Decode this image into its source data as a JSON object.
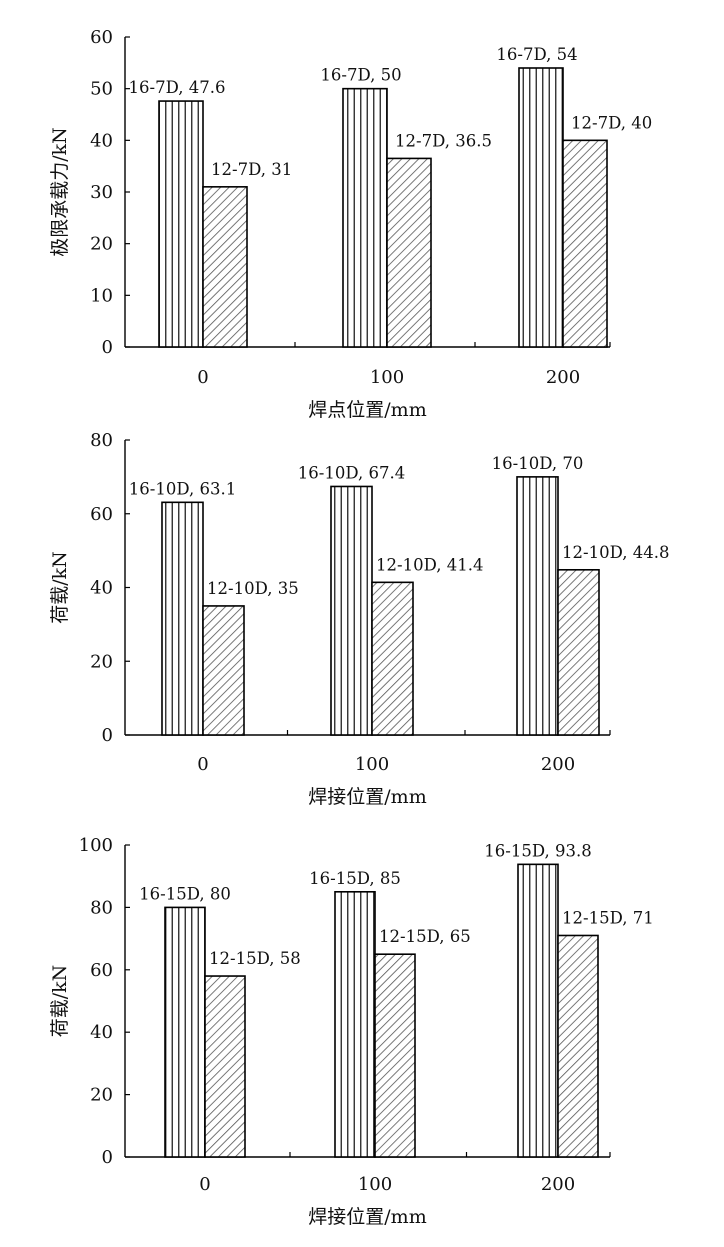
{
  "chart_data": [
    {
      "type": "bar",
      "categories": [
        "0",
        "100",
        "200"
      ],
      "series": [
        {
          "values": [
            47.6,
            50,
            54
          ],
          "labels": [
            "16-7D, 47.6",
            "16-7D, 50",
            "16-7D, 54"
          ],
          "pattern": "vertical-lines"
        },
        {
          "values": [
            31,
            36.5,
            40
          ],
          "labels": [
            "12-7D, 31",
            "12-7D, 36.5",
            "12-7D, 40"
          ],
          "pattern": "diagonal-hatch"
        }
      ],
      "xlabel": "焊点位置/mm",
      "ylabel": "极限承载力/kN",
      "ylim": [
        0,
        60
      ],
      "yticks": [
        "0",
        "10",
        "20",
        "30",
        "40",
        "50",
        "60"
      ],
      "grid": false
    },
    {
      "type": "bar",
      "categories": [
        "0",
        "100",
        "200"
      ],
      "series": [
        {
          "values": [
            63.1,
            67.4,
            70
          ],
          "labels": [
            "16-10D, 63.1",
            "16-10D, 67.4",
            "16-10D, 70"
          ],
          "pattern": "vertical-lines"
        },
        {
          "values": [
            35,
            41.4,
            44.8
          ],
          "labels": [
            "12-10D, 35",
            "12-10D, 41.4",
            "12-10D, 44.8"
          ],
          "pattern": "diagonal-hatch"
        }
      ],
      "xlabel": "焊接位置/mm",
      "ylabel": "荷载/kN",
      "ylim": [
        0,
        80
      ],
      "yticks": [
        "0",
        "20",
        "40",
        "60",
        "80"
      ],
      "grid": false
    },
    {
      "type": "bar",
      "categories": [
        "0",
        "100",
        "200"
      ],
      "series": [
        {
          "values": [
            80,
            85,
            93.8
          ],
          "labels": [
            "16-15D, 80",
            "16-15D, 85",
            "16-15D, 93.8"
          ],
          "pattern": "vertical-lines"
        },
        {
          "values": [
            58,
            65,
            71
          ],
          "labels": [
            "12-15D, 58",
            "12-15D, 65",
            "12-15D, 71"
          ],
          "pattern": "diagonal-hatch"
        }
      ],
      "xlabel": "焊接位置/mm",
      "ylabel": "荷载/kN",
      "ylim": [
        0,
        100
      ],
      "yticks": [
        "0",
        "20",
        "40",
        "60",
        "80",
        "100"
      ],
      "grid": false
    }
  ]
}
